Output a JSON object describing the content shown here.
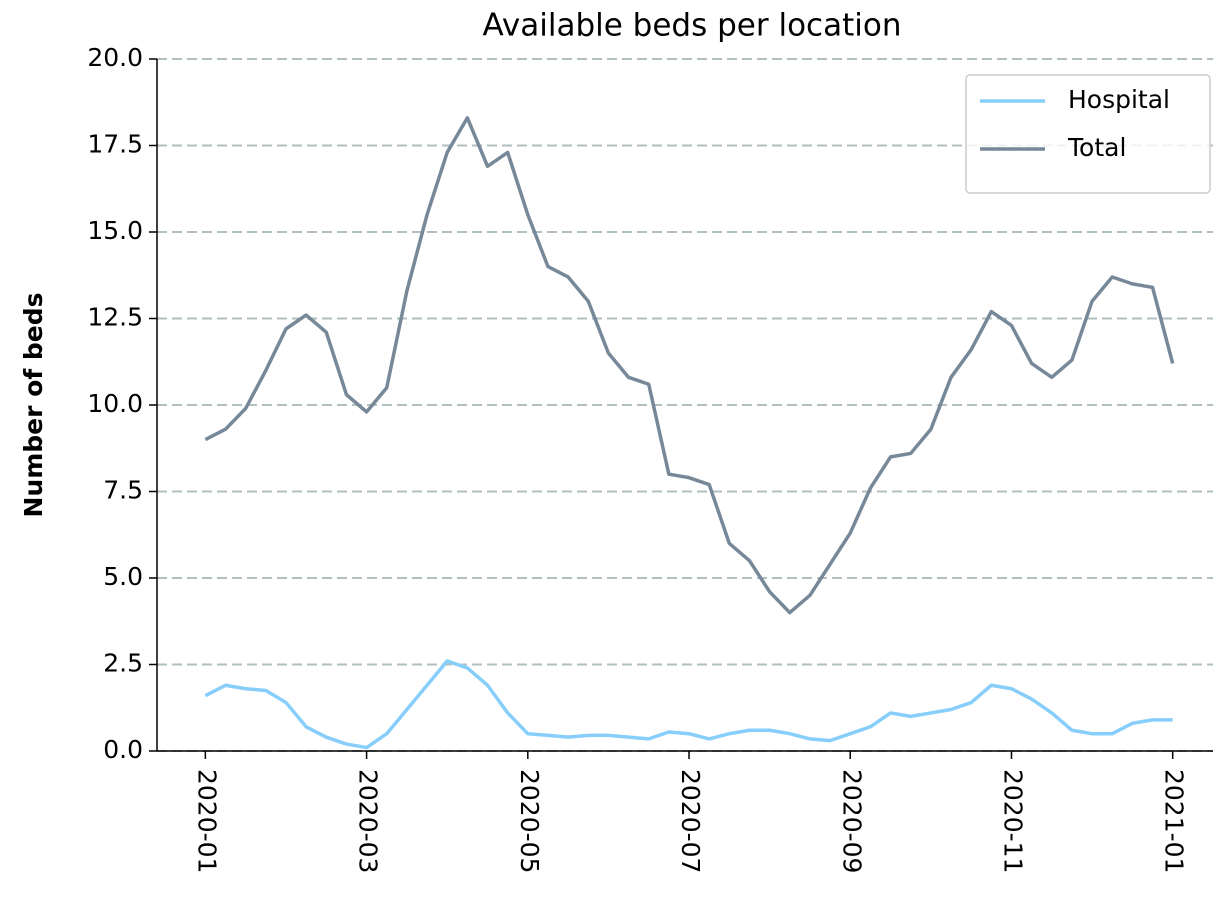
{
  "chart_data": {
    "type": "line",
    "title": "Available beds per location",
    "ylabel": "Number of beds",
    "x": [
      0,
      0.25,
      0.5,
      0.75,
      1,
      1.25,
      1.5,
      1.75,
      2,
      2.25,
      2.5,
      2.75,
      3,
      3.25,
      3.5,
      3.75,
      4,
      4.25,
      4.5,
      4.75,
      5,
      5.25,
      5.5,
      5.75,
      6,
      6.25,
      6.5,
      6.75,
      7,
      7.25,
      7.5,
      7.75,
      8,
      8.25,
      8.5,
      8.75,
      9,
      9.25,
      9.5,
      9.75,
      10,
      10.25,
      10.5,
      10.75,
      11,
      11.25,
      11.5,
      11.75,
      12
    ],
    "series": [
      {
        "name": "Hospital",
        "color": "#87cefa",
        "values": [
          1.6,
          1.9,
          1.8,
          1.75,
          1.4,
          0.7,
          0.4,
          0.2,
          0.1,
          0.5,
          1.2,
          1.9,
          2.6,
          2.4,
          1.9,
          1.1,
          0.5,
          0.45,
          0.4,
          0.45,
          0.45,
          0.4,
          0.35,
          0.55,
          0.5,
          0.35,
          0.5,
          0.6,
          0.6,
          0.5,
          0.35,
          0.3,
          0.5,
          0.7,
          1.1,
          1.0,
          1.1,
          1.2,
          1.4,
          1.9,
          1.8,
          1.5,
          1.1,
          0.6,
          0.5,
          0.5,
          0.8,
          0.9,
          0.9
        ]
      },
      {
        "name": "Total",
        "color": "#778899",
        "values": [
          9.0,
          9.3,
          9.9,
          11.0,
          12.2,
          12.6,
          12.1,
          10.3,
          9.8,
          10.5,
          13.3,
          15.5,
          17.3,
          18.3,
          16.9,
          17.3,
          15.5,
          14.0,
          13.7,
          13.0,
          11.5,
          10.8,
          10.6,
          8.0,
          7.9,
          7.7,
          6.0,
          5.5,
          4.6,
          4.0,
          4.5,
          5.4,
          6.3,
          7.6,
          8.5,
          8.6,
          9.3,
          10.8,
          11.6,
          12.7,
          12.3,
          11.2,
          10.8,
          11.3,
          13.0,
          13.7,
          13.5,
          13.4,
          11.2
        ]
      }
    ],
    "xlim": [
      -0.6,
      12.5
    ],
    "xticks": [
      {
        "value": 0,
        "label": "2020-01"
      },
      {
        "value": 2,
        "label": "2020-03"
      },
      {
        "value": 4,
        "label": "2020-05"
      },
      {
        "value": 6,
        "label": "2020-07"
      },
      {
        "value": 8,
        "label": "2020-09"
      },
      {
        "value": 10,
        "label": "2020-11"
      },
      {
        "value": 12,
        "label": "2021-01"
      }
    ],
    "ylim": [
      0,
      20
    ],
    "yticks": [
      {
        "value": 0,
        "label": "0.0"
      },
      {
        "value": 2.5,
        "label": "2.5"
      },
      {
        "value": 5,
        "label": "5.0"
      },
      {
        "value": 7.5,
        "label": "7.5"
      },
      {
        "value": 10,
        "label": "10.0"
      },
      {
        "value": 12.5,
        "label": "12.5"
      },
      {
        "value": 15,
        "label": "15.0"
      },
      {
        "value": 17.5,
        "label": "17.5"
      },
      {
        "value": 20,
        "label": "20.0"
      }
    ],
    "grid": true,
    "legend": "upper right"
  }
}
